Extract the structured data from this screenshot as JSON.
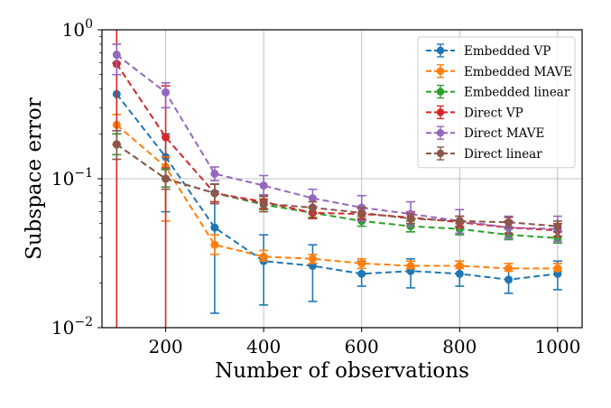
{
  "chart_data": {
    "type": "line",
    "title": "",
    "xlabel": "Number of observations",
    "ylabel": "Subspace error",
    "x": [
      100,
      200,
      300,
      400,
      500,
      600,
      700,
      800,
      900,
      1000
    ],
    "xlim": [
      70,
      1050
    ],
    "ylim": [
      0.01,
      1.0
    ],
    "yscale": "log",
    "xticks": [
      200,
      400,
      600,
      800,
      1000
    ],
    "yticks": [
      {
        "value": 0.01,
        "base": "10",
        "exp": "−2"
      },
      {
        "value": 0.1,
        "base": "10",
        "exp": "−1"
      },
      {
        "value": 1.0,
        "base": "10",
        "exp": "0"
      }
    ],
    "grid": true,
    "legend_position": "top-right",
    "series": [
      {
        "name": "Embedded VP",
        "color": "#1f77b4",
        "values": [
          0.37,
          0.14,
          0.047,
          0.028,
          0.026,
          0.023,
          0.024,
          0.023,
          0.021,
          0.023
        ],
        "err_low": [
          0.2,
          0.06,
          0.0125,
          0.0142,
          0.015,
          0.019,
          0.0185,
          0.019,
          0.017,
          0.018
        ],
        "err_high": [
          0.6,
          0.2,
          0.082,
          0.042,
          0.036,
          0.028,
          0.029,
          0.028,
          0.025,
          0.028
        ]
      },
      {
        "name": "Embedded MAVE",
        "color": "#ff7f0e",
        "values": [
          0.23,
          0.12,
          0.036,
          0.03,
          0.029,
          0.027,
          0.026,
          0.026,
          0.025,
          0.025
        ],
        "err_low": [
          0.17,
          0.052,
          0.031,
          0.028,
          0.027,
          0.025,
          0.025,
          0.025,
          0.024,
          0.024
        ],
        "err_high": [
          0.27,
          0.14,
          0.042,
          0.033,
          0.031,
          0.029,
          0.028,
          0.028,
          0.027,
          0.027
        ]
      },
      {
        "name": "Embedded linear",
        "color": "#2ca02c",
        "values": [
          0.17,
          0.1,
          0.08,
          0.067,
          0.059,
          0.052,
          0.048,
          0.046,
          0.042,
          0.04
        ],
        "err_low": [
          0.145,
          0.088,
          0.07,
          0.062,
          0.055,
          0.048,
          0.044,
          0.042,
          0.039,
          0.037
        ],
        "err_high": [
          0.2,
          0.115,
          0.092,
          0.073,
          0.064,
          0.056,
          0.052,
          0.05,
          0.046,
          0.044
        ]
      },
      {
        "name": "Direct VP",
        "color": "#d62728",
        "values": [
          0.59,
          0.19,
          0.08,
          0.07,
          0.059,
          0.058,
          0.055,
          0.051,
          0.047,
          0.045
        ],
        "err_low": [
          0.01,
          0.01,
          0.07,
          0.063,
          0.054,
          0.053,
          0.05,
          0.047,
          0.043,
          0.041
        ],
        "err_high": [
          1.0,
          0.42,
          0.092,
          0.077,
          0.065,
          0.063,
          0.06,
          0.056,
          0.052,
          0.05
        ]
      },
      {
        "name": "Direct MAVE",
        "color": "#9467bd",
        "values": [
          0.68,
          0.38,
          0.108,
          0.09,
          0.074,
          0.064,
          0.058,
          0.052,
          0.047,
          0.046
        ],
        "err_low": [
          0.5,
          0.3,
          0.097,
          0.078,
          0.065,
          0.052,
          0.048,
          0.043,
          0.04,
          0.038
        ],
        "err_high": [
          0.8,
          0.44,
          0.12,
          0.105,
          0.085,
          0.077,
          0.07,
          0.062,
          0.056,
          0.056
        ]
      },
      {
        "name": "Direct linear",
        "color": "#8c564b",
        "values": [
          0.17,
          0.1,
          0.08,
          0.068,
          0.064,
          0.059,
          0.054,
          0.052,
          0.051,
          0.048
        ],
        "err_low": [
          0.135,
          0.085,
          0.068,
          0.06,
          0.058,
          0.054,
          0.05,
          0.048,
          0.047,
          0.044
        ],
        "err_high": [
          0.21,
          0.118,
          0.092,
          0.076,
          0.07,
          0.064,
          0.058,
          0.056,
          0.055,
          0.052
        ]
      }
    ]
  }
}
